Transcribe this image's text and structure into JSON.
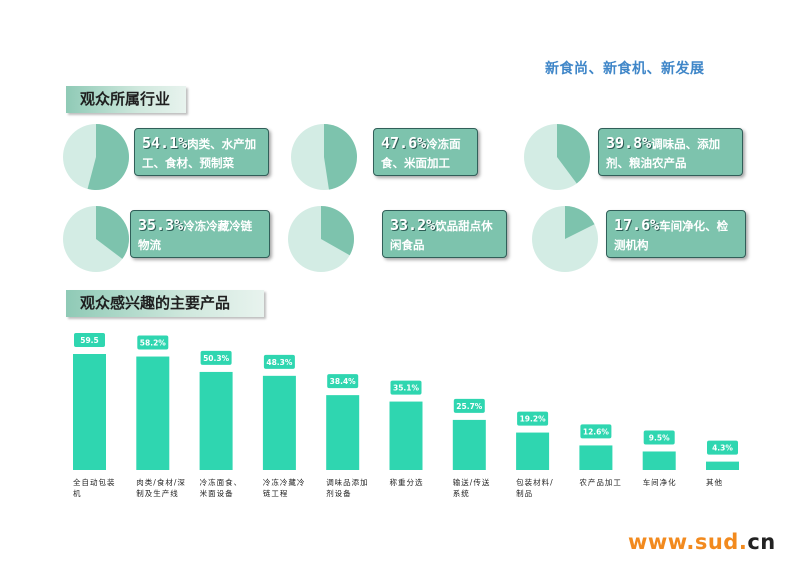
{
  "slogan": "新食尚、新食机、新发展",
  "section_industry": "观众所属行业",
  "section_products": "观众感兴趣的主要产品",
  "industry_stats": [
    {
      "pct": "54.1%",
      "value": 54.1,
      "label": "肉类、水产加工、食材、预制菜"
    },
    {
      "pct": "47.6%",
      "value": 47.6,
      "label": "冷冻面食、米面加工"
    },
    {
      "pct": "39.8%",
      "value": 39.8,
      "label": "调味品、添加剂、粮油农产品"
    },
    {
      "pct": "35.3%",
      "value": 35.3,
      "label": "冷冻冷藏冷链物流"
    },
    {
      "pct": "33.2%",
      "value": 33.2,
      "label": "饮品甜点休闲食品"
    },
    {
      "pct": "17.6%",
      "value": 17.6,
      "label": "车间净化、检测机构"
    }
  ],
  "colors": {
    "accent": "#2fd6b0",
    "pie_dark": "#7dc3ad",
    "pie_light": "#d3ece4",
    "box": "#7dc3ad",
    "slogan": "#3f86c8",
    "brand_orange": "#f28a1e"
  },
  "chart_data": {
    "type": "bar",
    "categories": [
      "全自动包装机",
      "肉类/食材/深制及生产线",
      "冷冻面食、米面设备",
      "冷冻冷藏冷链工程",
      "调味品添加剂设备",
      "称重分选",
      "输送/传送系统",
      "包装材料/制品",
      "农产品加工",
      "车间净化",
      "其他"
    ],
    "values": [
      59.5,
      58.2,
      50.3,
      48.3,
      38.4,
      35.1,
      25.7,
      19.2,
      12.6,
      9.5,
      4.3
    ],
    "value_labels": [
      "59.5",
      "58.2%",
      "50.3%",
      "48.3%",
      "38.4%",
      "35.1%",
      "25.7%",
      "19.2%",
      "12.6%",
      "9.5%",
      "4.3%"
    ],
    "ylim": [
      0,
      65
    ],
    "grid": false
  },
  "brand": {
    "prefix": "www",
    "dot1": ".",
    "domain": "sud",
    "dot2": ".",
    "tld": "cn"
  }
}
